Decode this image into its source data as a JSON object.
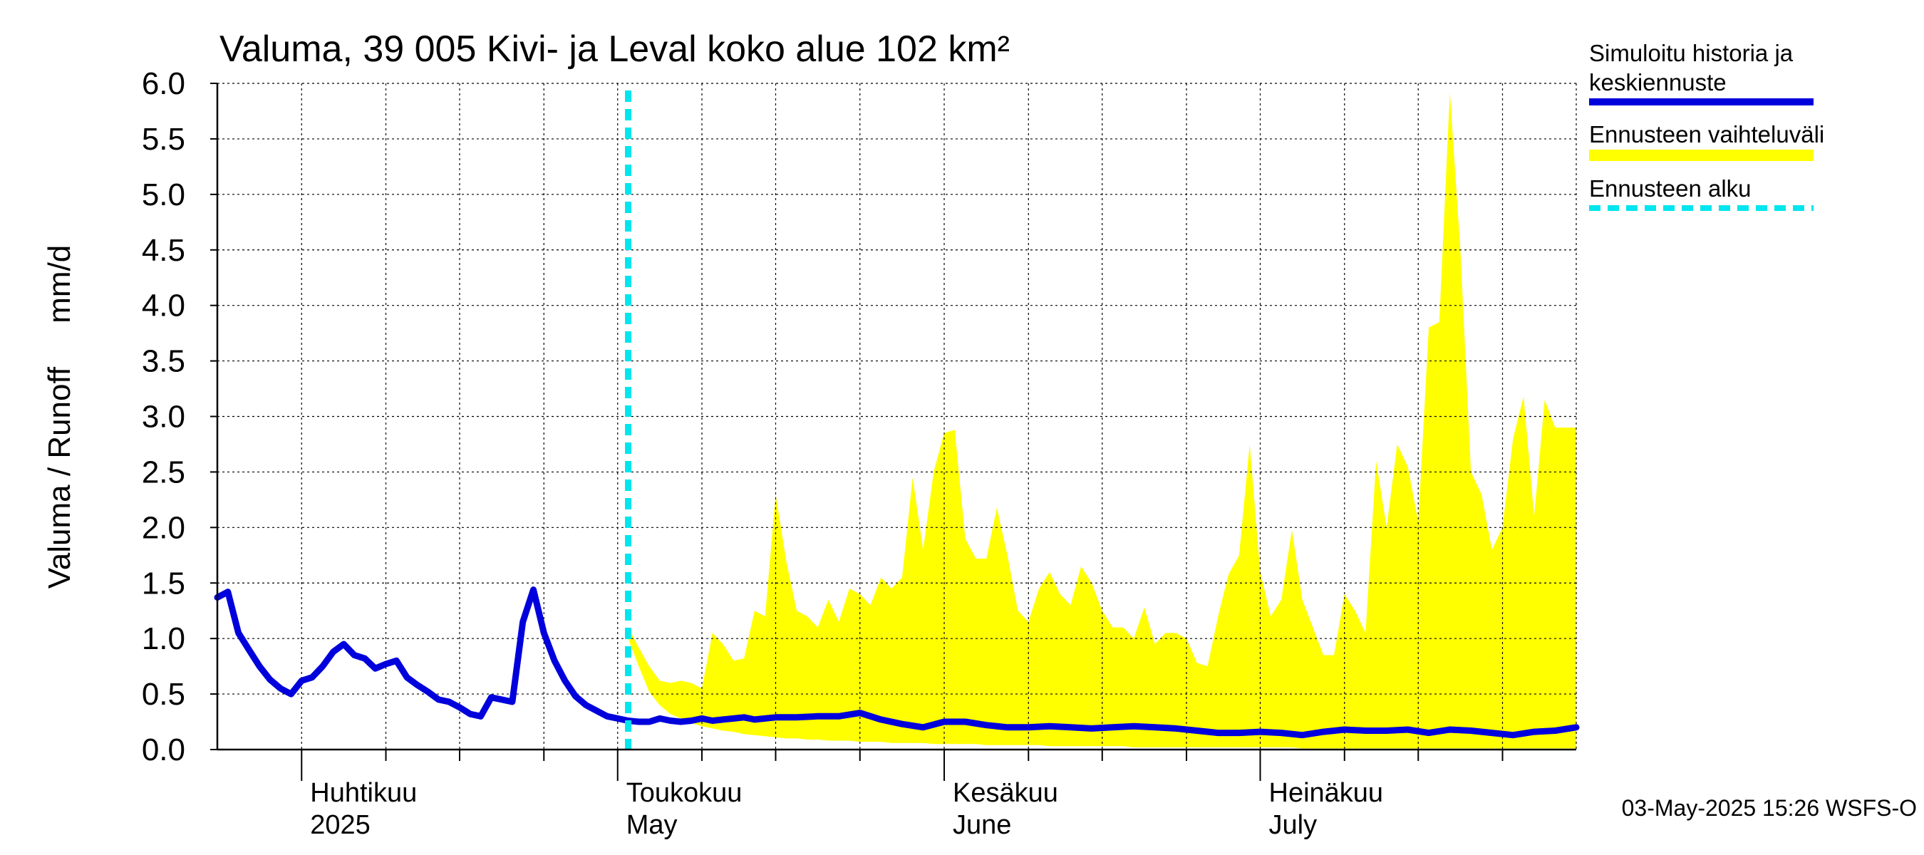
{
  "chart_data": {
    "type": "area",
    "title": "Valuma, 39 005 Kivi- ja Leval koko alue 102 km²",
    "ylabel": "Valuma / Runoff     mm/d",
    "ylim": [
      0,
      6.0
    ],
    "yticks": [
      "0.0",
      "0.5",
      "1.0",
      "1.5",
      "2.0",
      "2.5",
      "3.0",
      "3.5",
      "4.0",
      "4.5",
      "5.0",
      "5.5",
      "6.0"
    ],
    "x_start": "2025-03-24",
    "x_end": "2025-07-31",
    "forecast_start": "2025-05-02",
    "month_labels": [
      {
        "date": "2025-04-01",
        "fi": "Huhtikuu",
        "en": "2025"
      },
      {
        "date": "2025-05-01",
        "fi": "Toukokuu",
        "en": "May"
      },
      {
        "date": "2025-06-01",
        "fi": "Kesäkuu",
        "en": "June"
      },
      {
        "date": "2025-07-01",
        "fi": "Heinäkuu",
        "en": "July"
      }
    ],
    "legend": {
      "position": "right",
      "items": [
        {
          "label1": "Simuloitu historia ja",
          "label2": "keskiennuste",
          "color": "#0000dd",
          "style": "solid"
        },
        {
          "label1": "Ennusteen vaihteluväli",
          "label2": "",
          "color": "#ffff00",
          "style": "band"
        },
        {
          "label1": "Ennusteen alku",
          "label2": "",
          "color": "#00e5ee",
          "style": "dashed"
        }
      ]
    },
    "timestamp": "03-May-2025 15:26 WSFS-O",
    "series_mean": {
      "name": "Simuloitu historia ja keskiennuste",
      "x": [
        "2025-03-24",
        "2025-03-25",
        "2025-03-26",
        "2025-03-27",
        "2025-03-28",
        "2025-03-29",
        "2025-03-30",
        "2025-03-31",
        "2025-04-01",
        "2025-04-02",
        "2025-04-03",
        "2025-04-04",
        "2025-04-05",
        "2025-04-06",
        "2025-04-07",
        "2025-04-08",
        "2025-04-09",
        "2025-04-10",
        "2025-04-11",
        "2025-04-12",
        "2025-04-13",
        "2025-04-14",
        "2025-04-15",
        "2025-04-16",
        "2025-04-17",
        "2025-04-18",
        "2025-04-19",
        "2025-04-20",
        "2025-04-21",
        "2025-04-22",
        "2025-04-23",
        "2025-04-24",
        "2025-04-25",
        "2025-04-26",
        "2025-04-27",
        "2025-04-28",
        "2025-04-29",
        "2025-04-30",
        "2025-05-01",
        "2025-05-02",
        "2025-05-03",
        "2025-05-04",
        "2025-05-05",
        "2025-05-06",
        "2025-05-07",
        "2025-05-08",
        "2025-05-09",
        "2025-05-10",
        "2025-05-11",
        "2025-05-12",
        "2025-05-13",
        "2025-05-14",
        "2025-05-16",
        "2025-05-18",
        "2025-05-20",
        "2025-05-22",
        "2025-05-24",
        "2025-05-26",
        "2025-05-28",
        "2025-05-30",
        "2025-06-01",
        "2025-06-03",
        "2025-06-05",
        "2025-06-07",
        "2025-06-09",
        "2025-06-11",
        "2025-06-13",
        "2025-06-15",
        "2025-06-17",
        "2025-06-19",
        "2025-06-21",
        "2025-06-23",
        "2025-06-25",
        "2025-06-27",
        "2025-06-29",
        "2025-07-01",
        "2025-07-03",
        "2025-07-05",
        "2025-07-07",
        "2025-07-09",
        "2025-07-11",
        "2025-07-13",
        "2025-07-15",
        "2025-07-17",
        "2025-07-19",
        "2025-07-21",
        "2025-07-23",
        "2025-07-25",
        "2025-07-27",
        "2025-07-29",
        "2025-07-31"
      ],
      "values": [
        1.37,
        1.42,
        1.05,
        0.9,
        0.75,
        0.63,
        0.55,
        0.5,
        0.62,
        0.65,
        0.75,
        0.88,
        0.95,
        0.85,
        0.82,
        0.73,
        0.77,
        0.8,
        0.65,
        0.58,
        0.52,
        0.45,
        0.43,
        0.38,
        0.32,
        0.3,
        0.47,
        0.45,
        0.43,
        1.15,
        1.44,
        1.05,
        0.8,
        0.62,
        0.48,
        0.4,
        0.35,
        0.3,
        0.28,
        0.26,
        0.25,
        0.25,
        0.28,
        0.26,
        0.25,
        0.26,
        0.28,
        0.26,
        0.27,
        0.28,
        0.29,
        0.27,
        0.29,
        0.29,
        0.3,
        0.3,
        0.33,
        0.27,
        0.23,
        0.2,
        0.25,
        0.25,
        0.22,
        0.2,
        0.2,
        0.21,
        0.2,
        0.19,
        0.2,
        0.21,
        0.2,
        0.19,
        0.17,
        0.15,
        0.15,
        0.16,
        0.15,
        0.13,
        0.16,
        0.18,
        0.17,
        0.17,
        0.18,
        0.15,
        0.18,
        0.17,
        0.15,
        0.13,
        0.16,
        0.17,
        0.2
      ]
    },
    "series_band": {
      "name": "Ennusteen vaihteluväli",
      "x": [
        "2025-05-02",
        "2025-05-03",
        "2025-05-04",
        "2025-05-05",
        "2025-05-06",
        "2025-05-07",
        "2025-05-08",
        "2025-05-09",
        "2025-05-10",
        "2025-05-11",
        "2025-05-12",
        "2025-05-13",
        "2025-05-14",
        "2025-05-15",
        "2025-05-16",
        "2025-05-17",
        "2025-05-18",
        "2025-05-19",
        "2025-05-20",
        "2025-05-21",
        "2025-05-22",
        "2025-05-23",
        "2025-05-24",
        "2025-05-25",
        "2025-05-26",
        "2025-05-27",
        "2025-05-28",
        "2025-05-29",
        "2025-05-30",
        "2025-05-31",
        "2025-06-01",
        "2025-06-02",
        "2025-06-03",
        "2025-06-04",
        "2025-06-05",
        "2025-06-06",
        "2025-06-07",
        "2025-06-08",
        "2025-06-09",
        "2025-06-10",
        "2025-06-11",
        "2025-06-12",
        "2025-06-13",
        "2025-06-14",
        "2025-06-15",
        "2025-06-16",
        "2025-06-17",
        "2025-06-18",
        "2025-06-19",
        "2025-06-20",
        "2025-06-21",
        "2025-06-22",
        "2025-06-23",
        "2025-06-24",
        "2025-06-25",
        "2025-06-26",
        "2025-06-27",
        "2025-06-28",
        "2025-06-29",
        "2025-06-30",
        "2025-07-01",
        "2025-07-02",
        "2025-07-03",
        "2025-07-04",
        "2025-07-05",
        "2025-07-06",
        "2025-07-07",
        "2025-07-08",
        "2025-07-09",
        "2025-07-10",
        "2025-07-11",
        "2025-07-12",
        "2025-07-13",
        "2025-07-14",
        "2025-07-15",
        "2025-07-16",
        "2025-07-17",
        "2025-07-18",
        "2025-07-19",
        "2025-07-20",
        "2025-07-21",
        "2025-07-22",
        "2025-07-23",
        "2025-07-24",
        "2025-07-25",
        "2025-07-26",
        "2025-07-27",
        "2025-07-28",
        "2025-07-29",
        "2025-07-30",
        "2025-07-31"
      ],
      "upper": [
        1.1,
        0.92,
        0.75,
        0.62,
        0.6,
        0.62,
        0.6,
        0.55,
        1.05,
        0.95,
        0.8,
        0.82,
        1.25,
        1.2,
        2.3,
        1.7,
        1.25,
        1.2,
        1.1,
        1.35,
        1.15,
        1.45,
        1.4,
        1.3,
        1.55,
        1.45,
        1.55,
        2.45,
        1.8,
        2.5,
        2.85,
        2.88,
        1.9,
        1.72,
        1.72,
        2.18,
        1.75,
        1.25,
        1.15,
        1.45,
        1.6,
        1.4,
        1.3,
        1.65,
        1.5,
        1.25,
        1.1,
        1.1,
        1.0,
        1.28,
        0.95,
        1.05,
        1.05,
        1.0,
        0.78,
        0.75,
        1.2,
        1.58,
        1.75,
        2.75,
        1.6,
        1.2,
        1.35,
        1.98,
        1.35,
        1.1,
        0.85,
        0.85,
        1.4,
        1.25,
        1.05,
        2.6,
        2.0,
        2.75,
        2.55,
        2.05,
        3.8,
        3.85,
        5.92,
        4.5,
        2.5,
        2.3,
        1.8,
        2.0,
        2.8,
        3.18,
        2.1,
        3.15,
        2.9,
        2.9,
        2.9
      ],
      "lower": [
        1.0,
        0.75,
        0.52,
        0.4,
        0.32,
        0.28,
        0.24,
        0.21,
        0.19,
        0.17,
        0.16,
        0.14,
        0.13,
        0.12,
        0.11,
        0.1,
        0.1,
        0.09,
        0.09,
        0.08,
        0.08,
        0.08,
        0.07,
        0.07,
        0.07,
        0.06,
        0.06,
        0.06,
        0.06,
        0.05,
        0.05,
        0.05,
        0.05,
        0.05,
        0.04,
        0.04,
        0.04,
        0.04,
        0.04,
        0.04,
        0.03,
        0.03,
        0.03,
        0.03,
        0.03,
        0.03,
        0.03,
        0.03,
        0.02,
        0.02,
        0.02,
        0.02,
        0.02,
        0.02,
        0.02,
        0.02,
        0.02,
        0.02,
        0.02,
        0.02,
        0.02,
        0.02,
        0.02,
        0.02,
        0.01,
        0.01,
        0.01,
        0.01,
        0.01,
        0.01,
        0.01,
        0.01,
        0.01,
        0.01,
        0.01,
        0.01,
        0.01,
        0.01,
        0.01,
        0.01,
        0.01,
        0.01,
        0.01,
        0.01,
        0.01,
        0.01,
        0.01,
        0.01,
        0.01,
        0.01,
        0.01
      ]
    }
  }
}
